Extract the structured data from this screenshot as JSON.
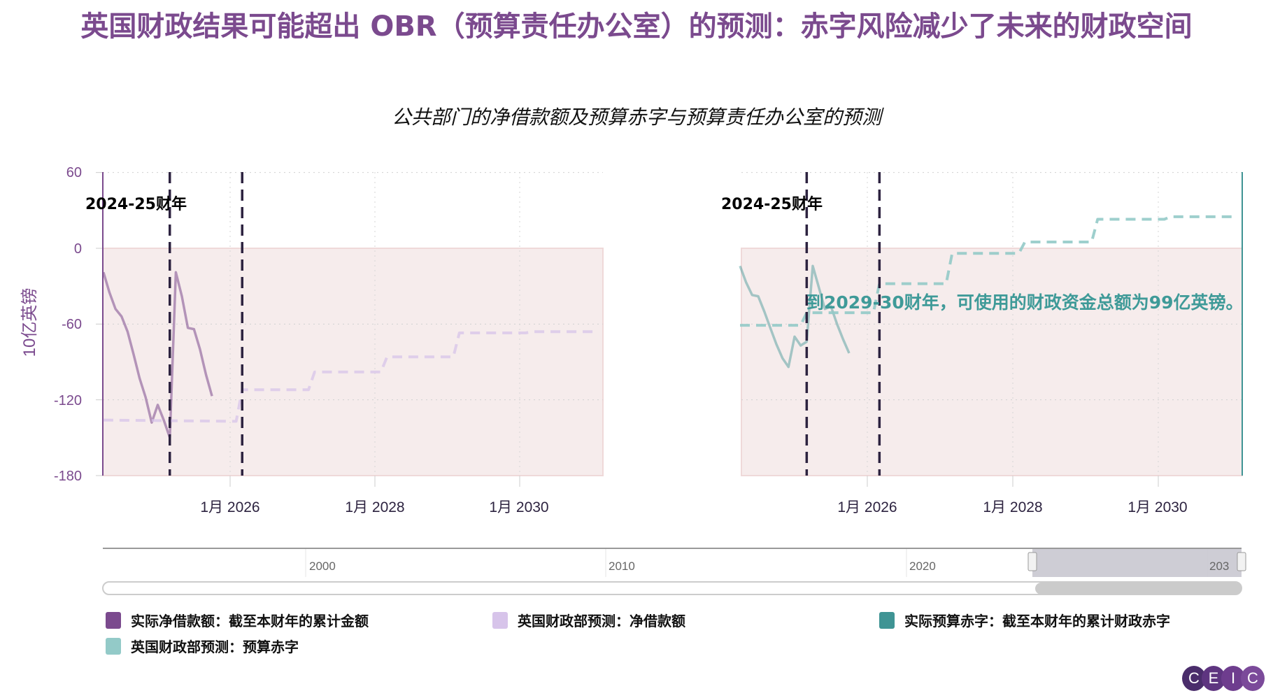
{
  "title": "英国财政结果可能超出 OBR（预算责任办公室）的预测：赤字风险减少了未来的财政空间",
  "subtitle": "公共部门的净借款额及预算赤字与预算责任办公室的预测",
  "colors": {
    "title": "#7b4a8e",
    "actual_borrowing": "#7b4a8e",
    "forecast_borrowing": "#d7c4ea",
    "actual_deficit": "#3f9494",
    "forecast_deficit": "#93cac8",
    "band": "#f6ecec",
    "fy_line": "#2d2340",
    "annotation": "#3f9a98"
  },
  "chart_data": [
    {
      "type": "line",
      "title": "",
      "ylabel": "10亿英镑",
      "xlabel": "",
      "ylim": [
        -180,
        60
      ],
      "yticks": [
        "60",
        "0",
        "-60",
        "-120",
        "-180"
      ],
      "xticks": [
        "1月 2026",
        "1月 2028",
        "1月 2030"
      ],
      "xlim": [
        "2024-04",
        "2031-02"
      ],
      "grid": true,
      "shaded_band": [
        -180,
        0
      ],
      "vertical_lines": [
        "2025-03",
        "2026-03"
      ],
      "annotations": [
        "2024-25财年"
      ],
      "series": [
        {
          "name": "实际净借款额：截至本财年的累计金额",
          "style": "solid",
          "x": [
            "2024-04",
            "2024-05",
            "2024-06",
            "2024-07",
            "2024-08",
            "2024-09",
            "2024-10",
            "2024-11",
            "2024-12",
            "2025-01",
            "2025-02",
            "2025-03",
            "2025-04",
            "2025-05",
            "2025-06",
            "2025-07",
            "2025-08",
            "2025-09",
            "2025-10"
          ],
          "y": [
            -19,
            -35,
            -48,
            -54,
            -66,
            -84,
            -103,
            -118,
            -138,
            -124,
            -136,
            -150,
            -19,
            -38,
            -63,
            -64,
            -80,
            -100,
            -117
          ]
        },
        {
          "name": "英国财政部预测：净借款额",
          "style": "dashed",
          "x": [
            "2024-04",
            "2026-02",
            "2026-03",
            "2027-02",
            "2027-03",
            "2028-02",
            "2028-03",
            "2029-02",
            "2029-03",
            "2030-02",
            "2030-03",
            "2031-02"
          ],
          "y": [
            -136,
            -137,
            -112,
            -112,
            -98,
            -98,
            -86,
            -86,
            -67,
            -67,
            -66,
            -66
          ]
        }
      ]
    },
    {
      "type": "line",
      "title": "",
      "ylim": [
        -180,
        60
      ],
      "xticks": [
        "1月 2026",
        "1月 2028",
        "1月 2030"
      ],
      "xlim": [
        "2024-04",
        "2031-02"
      ],
      "grid": true,
      "shaded_band": [
        -180,
        0
      ],
      "vertical_lines": [
        "2025-03",
        "2026-03"
      ],
      "annotations": [
        "2024-25财年",
        "到2029-30财年，可使用的财政资金总额为99亿英镑。"
      ],
      "series": [
        {
          "name": "实际预算赤字：截至本财年的累计财政赤字",
          "style": "solid",
          "x": [
            "2024-04",
            "2024-05",
            "2024-06",
            "2024-07",
            "2024-08",
            "2024-09",
            "2024-10",
            "2024-11",
            "2024-12",
            "2025-01",
            "2025-02",
            "2025-03",
            "2025-04",
            "2025-05",
            "2025-06",
            "2025-07",
            "2025-08",
            "2025-09",
            "2025-10"
          ],
          "y": [
            -14,
            -27,
            -37,
            -38,
            -50,
            -63,
            -76,
            -87,
            -94,
            -70,
            -77,
            -74,
            -14,
            -31,
            -48,
            -46,
            -60,
            -72,
            -83
          ]
        },
        {
          "name": "英国财政部预测：预算赤字",
          "style": "dashed",
          "x": [
            "2024-04",
            "2025-02",
            "2025-03",
            "2026-02",
            "2026-03",
            "2027-02",
            "2027-03",
            "2028-02",
            "2028-03",
            "2029-02",
            "2029-03",
            "2030-02",
            "2030-03",
            "2031-02"
          ],
          "y": [
            -61,
            -61,
            -51,
            -51,
            -28,
            -28,
            -4,
            -4,
            5,
            5,
            23,
            23,
            25,
            25
          ]
        }
      ]
    }
  ],
  "navigator": {
    "labels": [
      "2000",
      "2010",
      "2020",
      "203"
    ]
  },
  "legend": [
    "实际净借款额：截至本财年的累计金额",
    "英国财政部预测：净借款额",
    "实际预算赤字：截至本财年的累计财政赤字",
    "英国财政部预测：预算赤字"
  ],
  "logo": [
    "C",
    "E",
    "I",
    "C"
  ]
}
